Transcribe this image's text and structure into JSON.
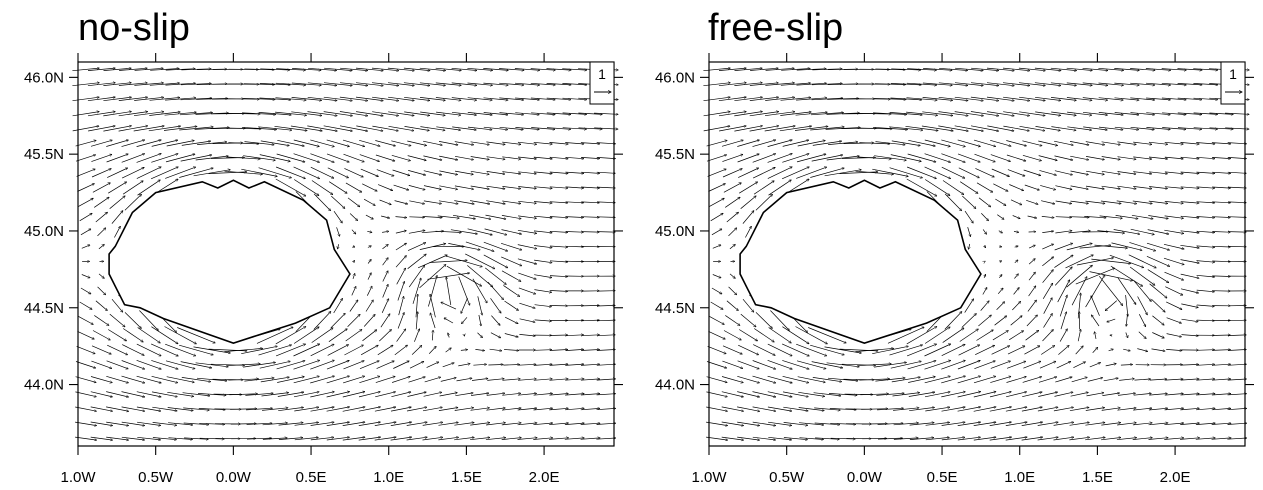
{
  "chart_data": [
    {
      "type": "vector_field",
      "title": "no-slip",
      "xlim": [
        -1.0,
        2.45
      ],
      "ylim": [
        43.6,
        46.1
      ],
      "x_ticks": [
        {
          "value": -1.0,
          "label": "1.0W"
        },
        {
          "value": -0.5,
          "label": "0.5W"
        },
        {
          "value": 0.0,
          "label": "0.0W"
        },
        {
          "value": 0.5,
          "label": "0.5E"
        },
        {
          "value": 1.0,
          "label": "1.0E"
        },
        {
          "value": 1.5,
          "label": "1.5E"
        },
        {
          "value": 2.0,
          "label": "2.0E"
        }
      ],
      "y_ticks": [
        {
          "value": 46.0,
          "label": "46.0N"
        },
        {
          "value": 45.5,
          "label": "45.5N"
        },
        {
          "value": 45.0,
          "label": "45.0N"
        },
        {
          "value": 44.5,
          "label": "44.5N"
        },
        {
          "value": 44.0,
          "label": "44.0N"
        }
      ],
      "y_labels_side": "left",
      "reference_vector": {
        "label": "1",
        "magnitude": 1,
        "position": "top-right"
      },
      "obstacle_polygon": [
        [
          -0.76,
          44.9
        ],
        [
          -0.65,
          45.12
        ],
        [
          -0.5,
          45.25
        ],
        [
          -0.2,
          45.32
        ],
        [
          -0.1,
          45.28
        ],
        [
          0.0,
          45.33
        ],
        [
          0.1,
          45.28
        ],
        [
          0.2,
          45.32
        ],
        [
          0.45,
          45.2
        ],
        [
          0.6,
          45.07
        ],
        [
          0.65,
          44.88
        ],
        [
          0.75,
          44.72
        ],
        [
          0.65,
          44.55
        ],
        [
          0.62,
          44.5
        ],
        [
          0.4,
          44.4
        ],
        [
          0.0,
          44.27
        ],
        [
          -0.45,
          44.43
        ],
        [
          -0.6,
          44.5
        ],
        [
          -0.7,
          44.52
        ],
        [
          -0.75,
          44.62
        ],
        [
          -0.8,
          44.72
        ],
        [
          -0.8,
          44.85
        ]
      ],
      "eddy_center": {
        "lon": 1.4,
        "lat": 44.62
      }
    },
    {
      "type": "vector_field",
      "title": "free-slip",
      "xlim": [
        -1.0,
        2.45
      ],
      "ylim": [
        43.6,
        46.1
      ],
      "x_ticks": [
        {
          "value": -1.0,
          "label": "1.0W"
        },
        {
          "value": -0.5,
          "label": "0.5W"
        },
        {
          "value": 0.0,
          "label": "0.0W"
        },
        {
          "value": 0.5,
          "label": "0.5E"
        },
        {
          "value": 1.0,
          "label": "1.0E"
        },
        {
          "value": 1.5,
          "label": "1.5E"
        },
        {
          "value": 2.0,
          "label": "2.0E"
        }
      ],
      "y_ticks": [
        {
          "value": 46.0,
          "label": "46.0N"
        },
        {
          "value": 45.5,
          "label": "45.5N"
        },
        {
          "value": 45.0,
          "label": "45.0N"
        },
        {
          "value": 44.5,
          "label": "44.5N"
        },
        {
          "value": 44.0,
          "label": "44.0N"
        }
      ],
      "y_labels_side": "left",
      "reference_vector": {
        "label": "1",
        "magnitude": 1,
        "position": "top-right"
      },
      "obstacle_polygon": [
        [
          -0.76,
          44.9
        ],
        [
          -0.65,
          45.12
        ],
        [
          -0.5,
          45.25
        ],
        [
          -0.2,
          45.32
        ],
        [
          -0.1,
          45.28
        ],
        [
          0.0,
          45.33
        ],
        [
          0.1,
          45.28
        ],
        [
          0.2,
          45.32
        ],
        [
          0.45,
          45.2
        ],
        [
          0.6,
          45.07
        ],
        [
          0.65,
          44.88
        ],
        [
          0.75,
          44.72
        ],
        [
          0.65,
          44.55
        ],
        [
          0.62,
          44.5
        ],
        [
          0.4,
          44.4
        ],
        [
          0.0,
          44.27
        ],
        [
          -0.45,
          44.43
        ],
        [
          -0.6,
          44.5
        ],
        [
          -0.7,
          44.52
        ],
        [
          -0.75,
          44.62
        ],
        [
          -0.8,
          44.72
        ],
        [
          -0.8,
          44.85
        ]
      ],
      "eddy_center": {
        "lon": 1.55,
        "lat": 44.6
      }
    }
  ]
}
